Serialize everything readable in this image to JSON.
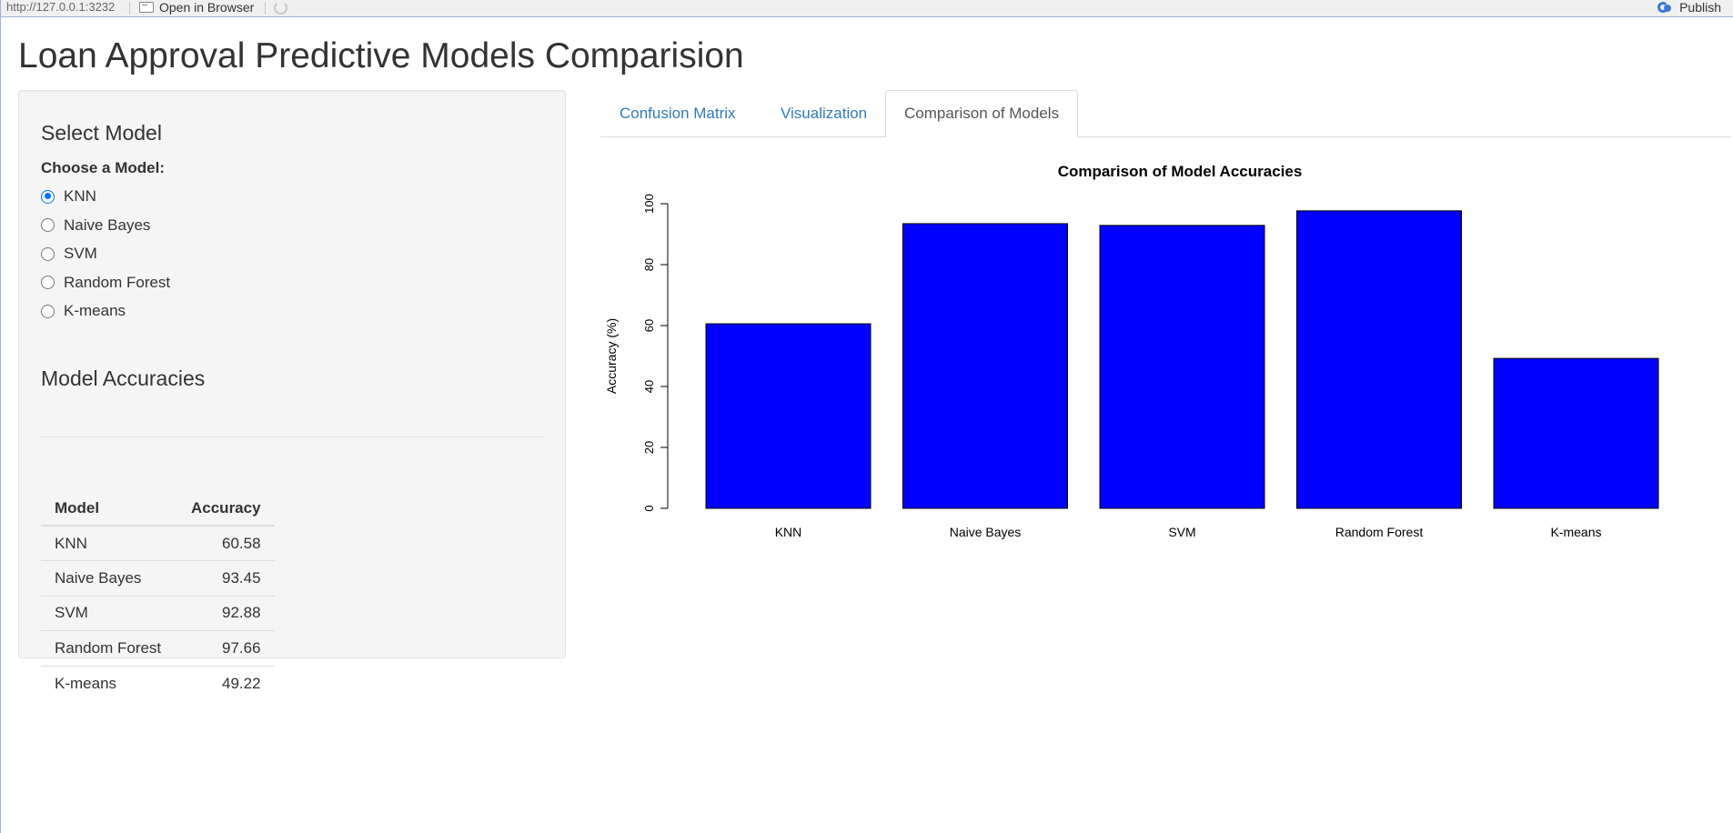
{
  "topbar": {
    "url": "http://127.0.0.1:3232",
    "open_in_browser": "Open in Browser",
    "publish": "Publish"
  },
  "page_title": "Loan Approval Predictive Models Comparision",
  "sidebar": {
    "select_heading": "Select Model",
    "choose_label": "Choose a Model:",
    "options": [
      "KNN",
      "Naive Bayes",
      "SVM",
      "Random Forest",
      "K-means"
    ],
    "selected": "KNN",
    "accuracies_heading": "Model Accuracies",
    "table": {
      "headers": [
        "Model",
        "Accuracy"
      ],
      "rows": [
        [
          "KNN",
          "60.58"
        ],
        [
          "Naive Bayes",
          "93.45"
        ],
        [
          "SVM",
          "92.88"
        ],
        [
          "Random Forest",
          "97.66"
        ],
        [
          "K-means",
          "49.22"
        ]
      ]
    }
  },
  "tabs": [
    {
      "label": "Confusion Matrix",
      "active": false
    },
    {
      "label": "Visualization",
      "active": false
    },
    {
      "label": "Comparison of Models",
      "active": true
    }
  ],
  "chart_data": {
    "type": "bar",
    "title": "Comparison of Model Accuracies",
    "xlabel": "",
    "ylabel": "Accuracy (%)",
    "categories": [
      "KNN",
      "Naive Bayes",
      "SVM",
      "Random Forest",
      "K-means"
    ],
    "values": [
      60.58,
      93.45,
      92.88,
      97.66,
      49.22
    ],
    "ylim": [
      0,
      100
    ],
    "yticks": [
      "0",
      "20",
      "40",
      "60",
      "80",
      "100"
    ],
    "bar_color": "#0000ff",
    "grid": false,
    "legend": "none"
  }
}
